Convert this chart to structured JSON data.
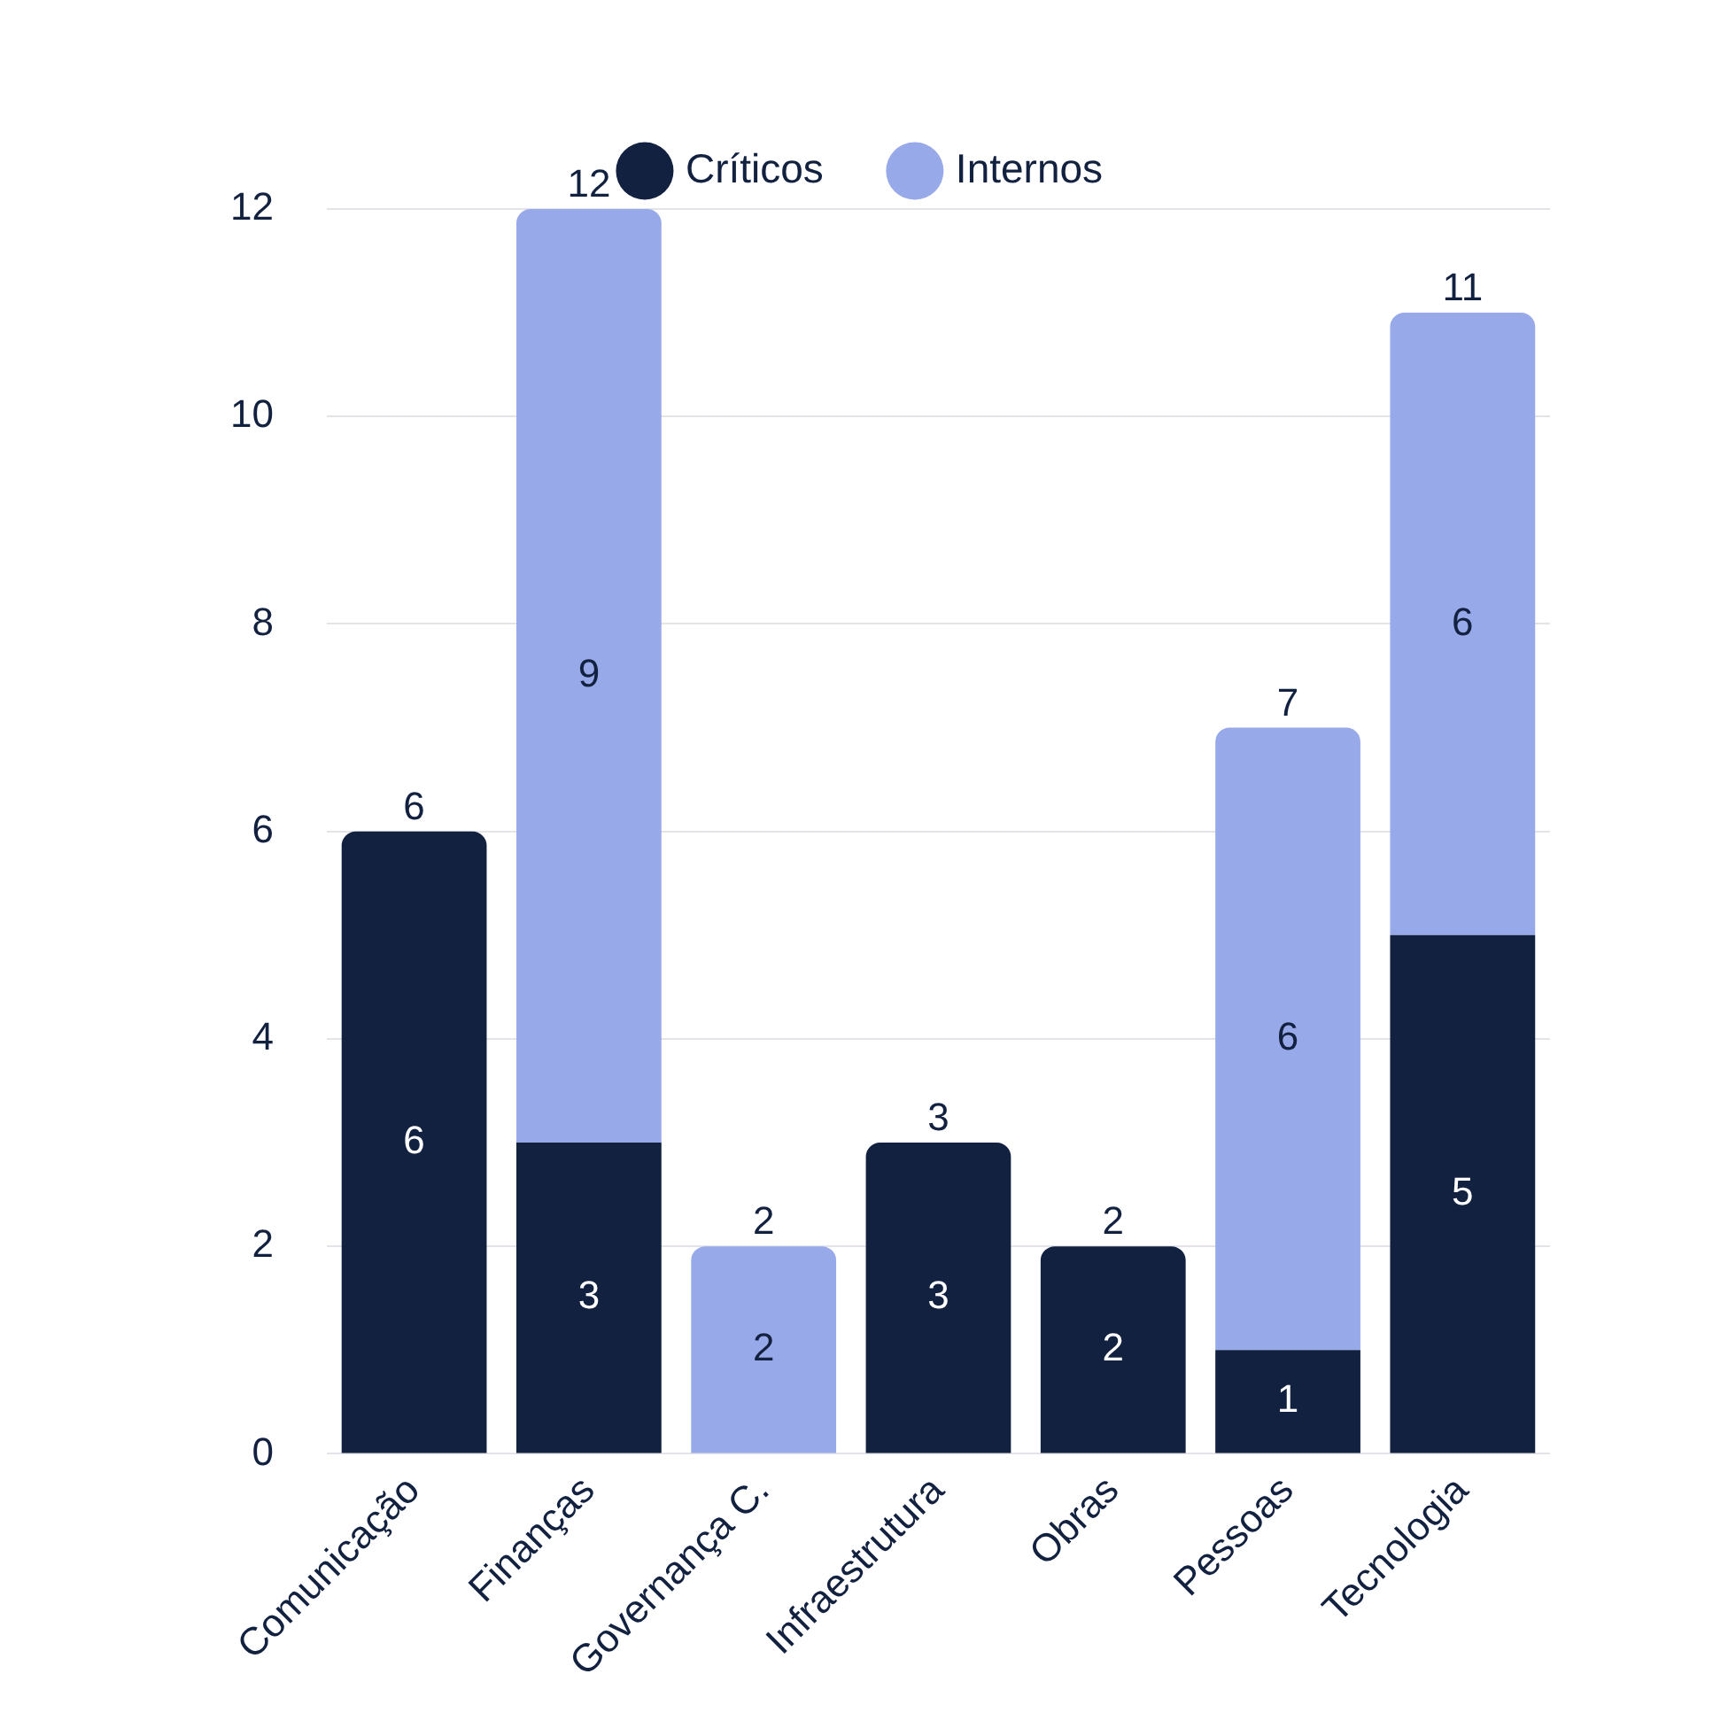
{
  "chart_data": {
    "type": "bar",
    "stacked": true,
    "categories": [
      "Comunicação",
      "Finanças",
      "Governança C.",
      "Infraestrutura",
      "Obras",
      "Pessoas",
      "Tecnologia"
    ],
    "series": [
      {
        "name": "Críticos",
        "color": "#12213f",
        "values": [
          6,
          3,
          null,
          3,
          2,
          1,
          5
        ]
      },
      {
        "name": "Internos",
        "color": "#97a9e8",
        "values": [
          null,
          9,
          2,
          null,
          null,
          6,
          6
        ]
      }
    ],
    "ylim": [
      0,
      12
    ],
    "yticks": [
      0,
      2,
      4,
      6,
      8,
      10,
      12
    ],
    "grid": "y",
    "legend": "top",
    "data_labels": true,
    "totals": [
      "6",
      "12",
      "2",
      "3",
      "2",
      "7",
      "11"
    ]
  }
}
